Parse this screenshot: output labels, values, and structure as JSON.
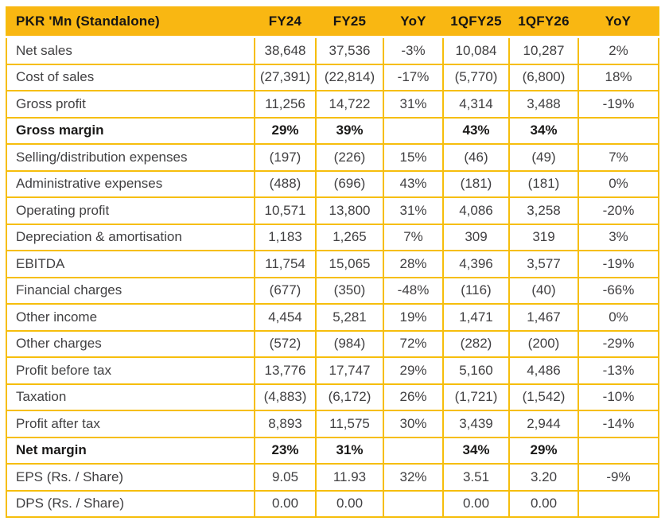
{
  "title": "PKR 'Mn (Standalone)",
  "colors": {
    "gold": "#F9B712",
    "grid": "#F6BE0C",
    "header_text": "#161514",
    "body_text": "#414042",
    "bold_text": "#1A1918",
    "background": "#FFFFFF"
  },
  "table": {
    "columns": [
      "PKR 'Mn (Standalone)",
      "FY24",
      "FY25",
      "YoY",
      "1QFY25",
      "1QFY26",
      "YoY"
    ],
    "rows": [
      {
        "label": "Net sales",
        "bold": false,
        "values": [
          "38,648",
          "37,536",
          "-3%",
          "10,084",
          "10,287",
          "2%"
        ]
      },
      {
        "label": "Cost of sales",
        "bold": false,
        "values": [
          "(27,391)",
          "(22,814)",
          "-17%",
          "(5,770)",
          "(6,800)",
          "18%"
        ]
      },
      {
        "label": "Gross profit",
        "bold": false,
        "values": [
          "11,256",
          "14,722",
          "31%",
          "4,314",
          "3,488",
          "-19%"
        ]
      },
      {
        "label": "Gross margin",
        "bold": true,
        "values": [
          "29%",
          "39%",
          "",
          "43%",
          "34%",
          ""
        ]
      },
      {
        "label": "Selling/distribution expenses",
        "bold": false,
        "values": [
          "(197)",
          "(226)",
          "15%",
          "(46)",
          "(49)",
          "7%"
        ]
      },
      {
        "label": "Administrative expenses",
        "bold": false,
        "values": [
          "(488)",
          "(696)",
          "43%",
          "(181)",
          "(181)",
          "0%"
        ]
      },
      {
        "label": "Operating profit",
        "bold": false,
        "values": [
          "10,571",
          "13,800",
          "31%",
          "4,086",
          "3,258",
          "-20%"
        ]
      },
      {
        "label": "Depreciation & amortisation",
        "bold": false,
        "values": [
          "1,183",
          "1,265",
          "7%",
          "309",
          "319",
          "3%"
        ]
      },
      {
        "label": "EBITDA",
        "bold": false,
        "values": [
          "11,754",
          "15,065",
          "28%",
          "4,396",
          "3,577",
          "-19%"
        ]
      },
      {
        "label": "Financial charges",
        "bold": false,
        "values": [
          "(677)",
          "(350)",
          "-48%",
          "(116)",
          "(40)",
          "-66%"
        ]
      },
      {
        "label": "Other income",
        "bold": false,
        "values": [
          "4,454",
          "5,281",
          "19%",
          "1,471",
          "1,467",
          "0%"
        ]
      },
      {
        "label": "Other charges",
        "bold": false,
        "values": [
          "(572)",
          "(984)",
          "72%",
          "(282)",
          "(200)",
          "-29%"
        ]
      },
      {
        "label": "Profit before tax",
        "bold": false,
        "values": [
          "13,776",
          "17,747",
          "29%",
          "5,160",
          "4,486",
          "-13%"
        ]
      },
      {
        "label": "Taxation",
        "bold": false,
        "values": [
          "(4,883)",
          "(6,172)",
          "26%",
          "(1,721)",
          "(1,542)",
          "-10%"
        ]
      },
      {
        "label": "Profit after tax",
        "bold": false,
        "values": [
          "8,893",
          "11,575",
          "30%",
          "3,439",
          "2,944",
          "-14%"
        ]
      },
      {
        "label": "Net margin",
        "bold": true,
        "values": [
          "23%",
          "31%",
          "",
          "34%",
          "29%",
          ""
        ]
      },
      {
        "label": "EPS (Rs. / Share)",
        "bold": false,
        "values": [
          "9.05",
          "11.93",
          "32%",
          "3.51",
          "3.20",
          "-9%"
        ]
      },
      {
        "label": "DPS (Rs. / Share)",
        "bold": false,
        "values": [
          "0.00",
          "0.00",
          "",
          "0.00",
          "0.00",
          ""
        ]
      }
    ]
  }
}
